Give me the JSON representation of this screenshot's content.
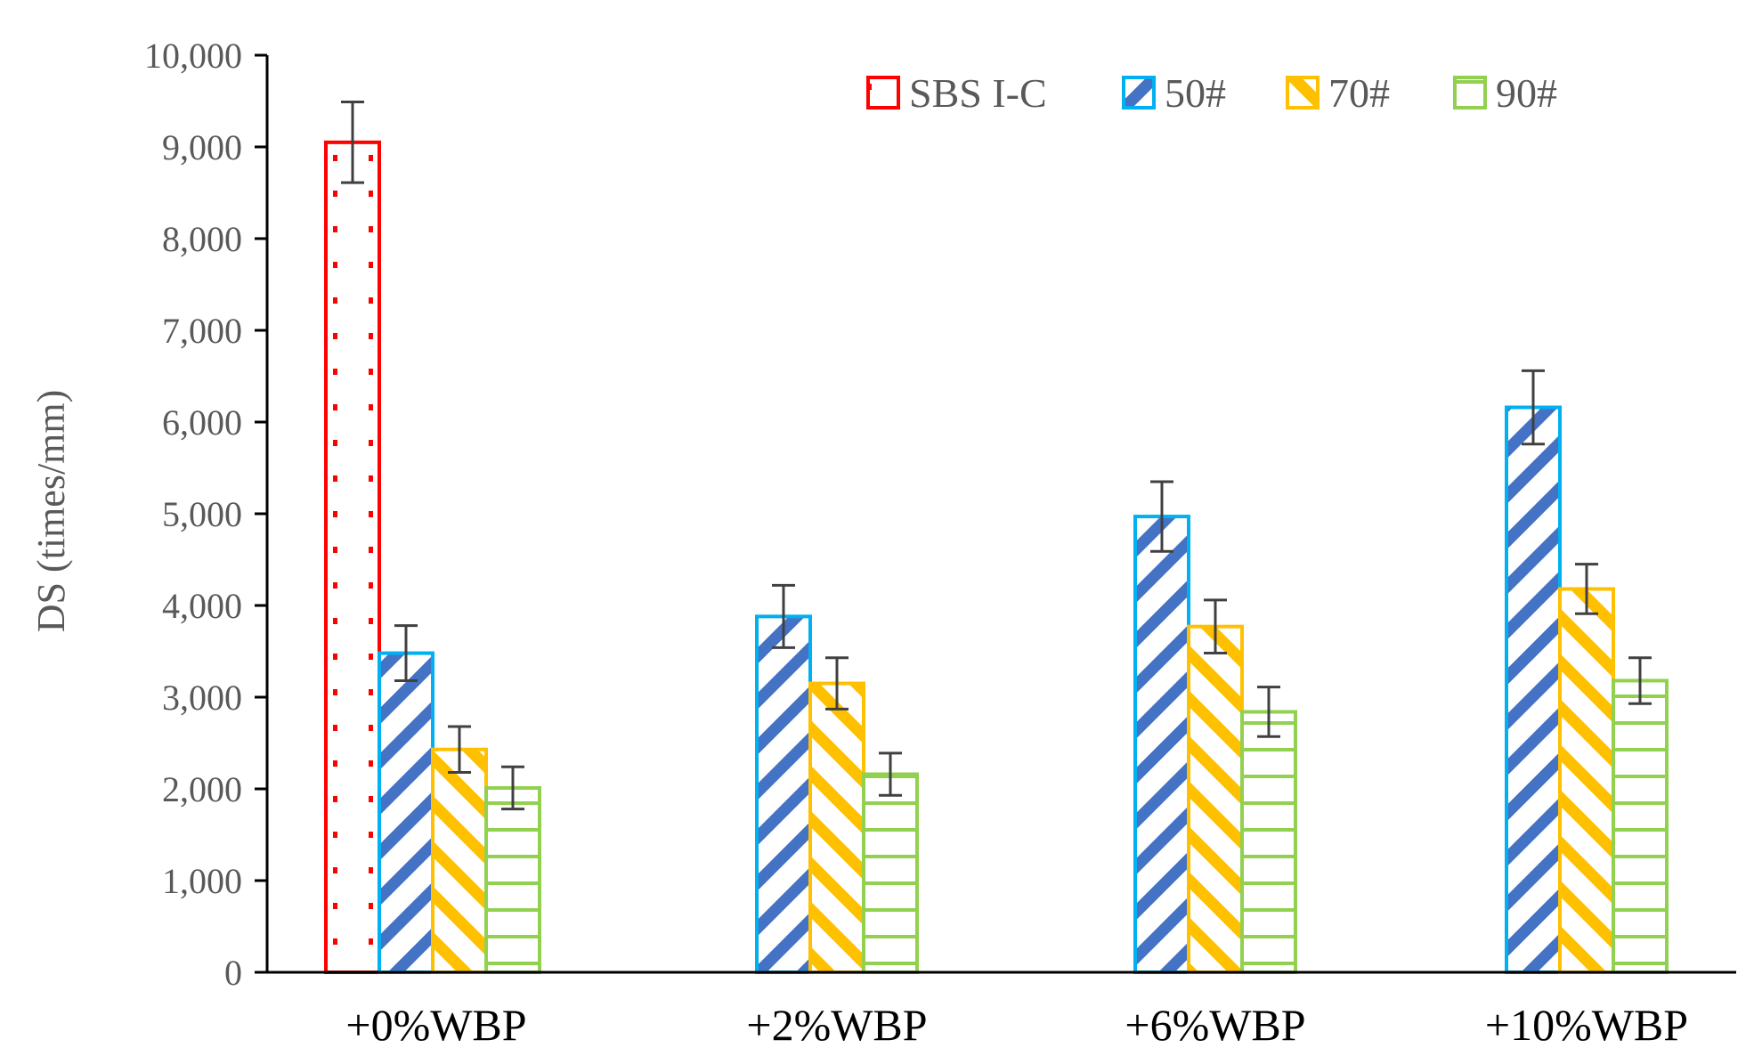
{
  "chart_data": {
    "type": "bar",
    "title": "",
    "xlabel": "",
    "ylabel": "DS (times/mm)",
    "ylim": [
      0,
      10000
    ],
    "ytick_step": 1000,
    "yticks": [
      "0",
      "1,000",
      "2,000",
      "3,000",
      "4,000",
      "5,000",
      "6,000",
      "7,000",
      "8,000",
      "9,000",
      "10,000"
    ],
    "grid": false,
    "legend_position": "top-right",
    "categories": [
      "+0%WBP",
      "+2%WBP",
      "+6%WBP",
      "+10%WBP"
    ],
    "series": [
      {
        "name": "SBS I-C",
        "color": "#ff0000",
        "pattern": "dots",
        "values": [
          9050,
          null,
          null,
          null
        ],
        "errors": [
          440,
          null,
          null,
          null
        ]
      },
      {
        "name": "50#",
        "color": "#00b0f0",
        "fill_color": "#4472c4",
        "pattern": "diagonal-down",
        "values": [
          3480,
          3880,
          4970,
          6160
        ],
        "errors": [
          300,
          340,
          380,
          400
        ]
      },
      {
        "name": "70#",
        "color": "#ffc000",
        "fill_color": "#ffc000",
        "pattern": "diagonal-up",
        "values": [
          2430,
          3150,
          3770,
          4180
        ],
        "errors": [
          250,
          280,
          290,
          270
        ]
      },
      {
        "name": "90#",
        "color": "#92d050",
        "fill_color": "#92d050",
        "pattern": "horizontal",
        "values": [
          2010,
          2160,
          2840,
          3180
        ],
        "errors": [
          230,
          230,
          270,
          250
        ]
      }
    ]
  }
}
